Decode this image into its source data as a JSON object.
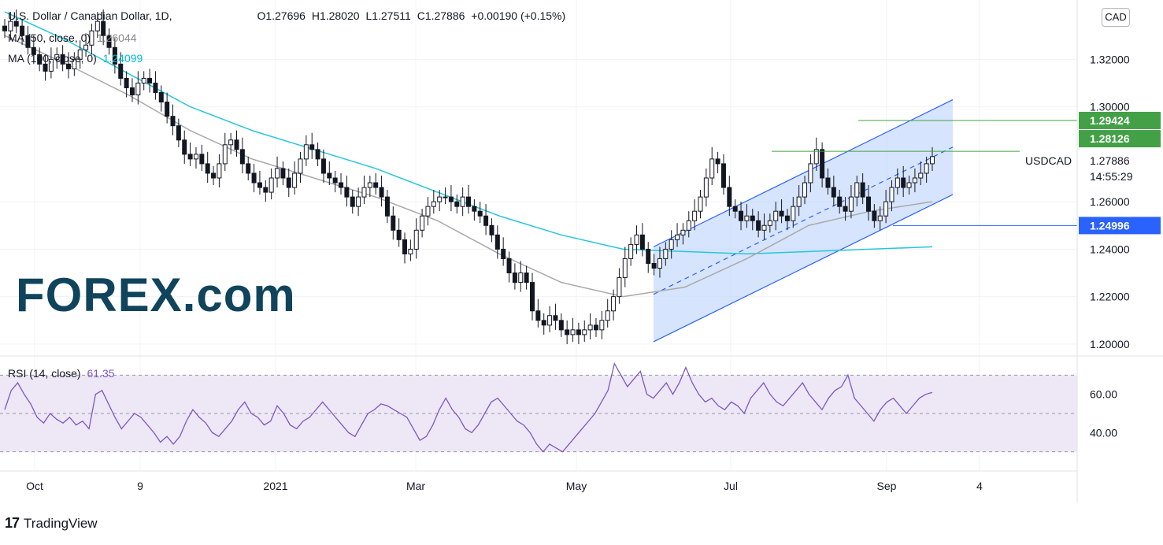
{
  "header": {
    "symbol_title": "U.S. Dollar / Canadian Dollar, 1D,",
    "open": "O1.27696",
    "high": "H1.28020",
    "low": "L1.27511",
    "close": "C1.27886",
    "change": "+0.00190 (+0.15%)"
  },
  "indicators": {
    "ma50_label": "MA (50, close, 0)",
    "ma50_value": "1.26044",
    "ma100_label": "MA (100, close, 0)",
    "ma100_value": "1.24099",
    "rsi_label": "RSI (14, close)",
    "rsi_value": "61.35"
  },
  "currency_badge": "CAD",
  "branding": {
    "forex_logo_text": "FOREX.com",
    "tradingview_text": "TradingView"
  },
  "colors": {
    "up": "#26a69a",
    "down": "#131722",
    "candle": "#131722",
    "ma50": "#a9a9a9",
    "ma100": "#26c6da",
    "channel": "#2962ff",
    "channel_fill": "#bbd2fb",
    "rsi_line": "#7e57c2",
    "rsi_band": "#ede7f6",
    "green_level": "#43a047",
    "blue_level": "#2962ff"
  },
  "chart_data": [
    {
      "type": "candlestick",
      "title": "U.S. Dollar / Canadian Dollar, 1D,",
      "x_ticks": [
        "Oct",
        "9",
        "2021",
        "Mar",
        "May",
        "Jul",
        "Sep",
        "4"
      ],
      "y_ticks": [
        "1.32000",
        "1.30000",
        "1.26000",
        "1.24000",
        "1.22000",
        "1.20000"
      ],
      "ylim": [
        1.195,
        1.345
      ],
      "price_labels": {
        "last_price": "1.27886",
        "countdown": "14:55:29",
        "symbol": "USDCAD",
        "level_1": "1.29424",
        "level_2": "1.28126",
        "level_3": "1.24996"
      },
      "key_levels": [
        1.29424,
        1.28126,
        1.24996
      ],
      "close_path": [
        1.332,
        1.336,
        1.334,
        1.33,
        1.325,
        1.322,
        1.318,
        1.315,
        1.32,
        1.322,
        1.318,
        1.316,
        1.32,
        1.324,
        1.326,
        1.332,
        1.336,
        1.33,
        1.325,
        1.318,
        1.312,
        1.308,
        1.305,
        1.31,
        1.312,
        1.31,
        1.306,
        1.302,
        1.296,
        1.292,
        1.286,
        1.28,
        1.278,
        1.28,
        1.276,
        1.272,
        1.27,
        1.276,
        1.284,
        1.286,
        1.282,
        1.276,
        1.272,
        1.268,
        1.266,
        1.264,
        1.27,
        1.274,
        1.27,
        1.266,
        1.272,
        1.278,
        1.284,
        1.282,
        1.278,
        1.272,
        1.27,
        1.268,
        1.266,
        1.262,
        1.258,
        1.262,
        1.266,
        1.268,
        1.266,
        1.262,
        1.254,
        1.248,
        1.244,
        1.238,
        1.24,
        1.248,
        1.254,
        1.258,
        1.26,
        1.262,
        1.262,
        1.26,
        1.258,
        1.262,
        1.258,
        1.256,
        1.254,
        1.25,
        1.246,
        1.24,
        1.236,
        1.23,
        1.226,
        1.23,
        1.226,
        1.214,
        1.21,
        1.208,
        1.212,
        1.21,
        1.206,
        1.204,
        1.206,
        1.204,
        1.206,
        1.208,
        1.206,
        1.21,
        1.214,
        1.22,
        1.228,
        1.236,
        1.242,
        1.246,
        1.24,
        1.234,
        1.232,
        1.236,
        1.24,
        1.244,
        1.246,
        1.248,
        1.252,
        1.256,
        1.262,
        1.27,
        1.278,
        1.276,
        1.266,
        1.258,
        1.256,
        1.252,
        1.254,
        1.252,
        1.248,
        1.25,
        1.252,
        1.256,
        1.254,
        1.252,
        1.258,
        1.262,
        1.268,
        1.276,
        1.282,
        1.27,
        1.266,
        1.262,
        1.258,
        1.256,
        1.262,
        1.268,
        1.262,
        1.256,
        1.252,
        1.254,
        1.26,
        1.266,
        1.27,
        1.266,
        1.268,
        1.27,
        1.272,
        1.276,
        1.279
      ],
      "ma50": {
        "start": 1.33,
        "points": [
          1.33,
          1.318,
          1.305,
          1.29,
          1.278,
          1.27,
          1.262,
          1.252,
          1.238,
          1.226,
          1.22,
          1.224,
          1.236,
          1.25,
          1.256,
          1.26
        ]
      },
      "ma100": {
        "start": 1.34,
        "points": [
          1.34,
          1.328,
          1.314,
          1.3,
          1.29,
          1.282,
          1.274,
          1.264,
          1.254,
          1.246,
          1.24,
          1.239,
          1.238,
          1.239,
          1.24,
          1.241
        ]
      },
      "channel": {
        "lower_start": 1.201,
        "lower_end": 1.263,
        "upper_start": 1.241,
        "upper_end": 1.303
      }
    },
    {
      "type": "line",
      "title": "RSI (14, close)",
      "y_ticks": [
        "60.00",
        "40.00"
      ],
      "ylim": [
        20,
        80
      ],
      "bands": [
        30,
        50,
        70
      ],
      "values": [
        52,
        62,
        66,
        60,
        55,
        48,
        45,
        50,
        47,
        45,
        48,
        44,
        46,
        42,
        60,
        62,
        55,
        48,
        42,
        46,
        50,
        48,
        44,
        40,
        35,
        38,
        34,
        38,
        46,
        52,
        48,
        45,
        40,
        38,
        42,
        46,
        52,
        56,
        50,
        48,
        44,
        46,
        54,
        50,
        44,
        42,
        46,
        48,
        52,
        56,
        52,
        48,
        44,
        40,
        38,
        44,
        50,
        52,
        55,
        54,
        52,
        50,
        48,
        42,
        36,
        38,
        44,
        52,
        58,
        52,
        48,
        42,
        40,
        44,
        50,
        56,
        58,
        54,
        50,
        46,
        44,
        40,
        34,
        30,
        34,
        32,
        30,
        34,
        38,
        42,
        46,
        50,
        56,
        62,
        76,
        70,
        64,
        68,
        72,
        60,
        58,
        62,
        66,
        60,
        66,
        74,
        66,
        60,
        56,
        58,
        54,
        52,
        56,
        54,
        50,
        58,
        62,
        66,
        60,
        56,
        54,
        58,
        62,
        66,
        60,
        56,
        52,
        58,
        62,
        64,
        70,
        58,
        54,
        50,
        46,
        52,
        56,
        58,
        54,
        50,
        54,
        58,
        60,
        61
      ]
    }
  ]
}
